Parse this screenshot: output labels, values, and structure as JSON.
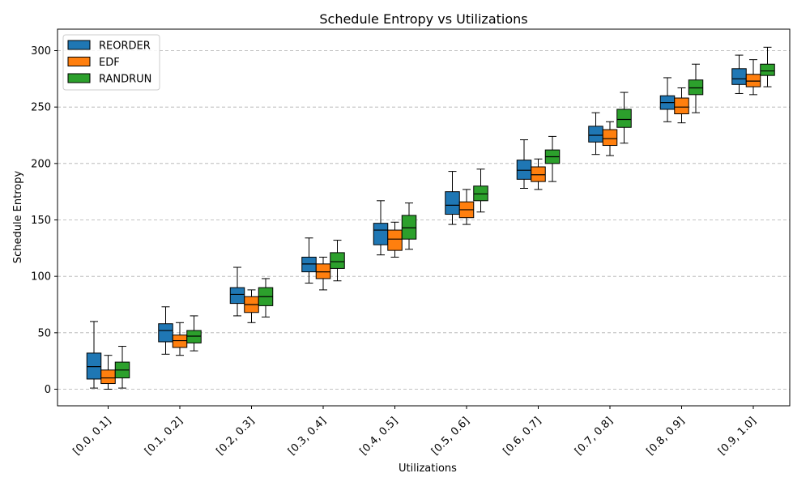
{
  "chart_data": {
    "type": "box",
    "title": "Schedule Entropy vs Utilizations",
    "xlabel": "Utilizations",
    "ylabel": "Schedule Entropy",
    "ylim": [
      -15,
      320
    ],
    "yticks": [
      0,
      50,
      100,
      150,
      200,
      250,
      300
    ],
    "grid": "y-dashed",
    "legend_position": "top-left",
    "categories": [
      "[0.0, 0.1]",
      "[0.1, 0.2]",
      "[0.2, 0.3]",
      "[0.3, 0.4]",
      "[0.4, 0.5]",
      "[0.5, 0.6]",
      "[0.6, 0.7]",
      "[0.7, 0.8]",
      "[0.8, 0.9]",
      "[0.9, 1.0]"
    ],
    "series": [
      {
        "name": "REORDER",
        "color": "#1f77b4",
        "boxes": [
          {
            "whislo": 1,
            "q1": 9,
            "med": 20,
            "q3": 32,
            "whishi": 60
          },
          {
            "whislo": 31,
            "q1": 42,
            "med": 52,
            "q3": 58,
            "whishi": 73
          },
          {
            "whislo": 65,
            "q1": 76,
            "med": 84,
            "q3": 90,
            "whishi": 108
          },
          {
            "whislo": 94,
            "q1": 104,
            "med": 111,
            "q3": 117,
            "whishi": 134
          },
          {
            "whislo": 119,
            "q1": 128,
            "med": 141,
            "q3": 147,
            "whishi": 167
          },
          {
            "whislo": 146,
            "q1": 155,
            "med": 163,
            "q3": 175,
            "whishi": 193
          },
          {
            "whislo": 178,
            "q1": 186,
            "med": 194,
            "q3": 203,
            "whishi": 221
          },
          {
            "whislo": 208,
            "q1": 219,
            "med": 225,
            "q3": 233,
            "whishi": 245
          },
          {
            "whislo": 237,
            "q1": 248,
            "med": 254,
            "q3": 260,
            "whishi": 276
          },
          {
            "whislo": 262,
            "q1": 270,
            "med": 275,
            "q3": 284,
            "whishi": 296
          }
        ]
      },
      {
        "name": "EDF",
        "color": "#ff7f0e",
        "boxes": [
          {
            "whislo": 0,
            "q1": 5,
            "med": 10,
            "q3": 17,
            "whishi": 30
          },
          {
            "whislo": 30,
            "q1": 37,
            "med": 43,
            "q3": 48,
            "whishi": 59
          },
          {
            "whislo": 59,
            "q1": 68,
            "med": 75,
            "q3": 82,
            "whishi": 88
          },
          {
            "whislo": 88,
            "q1": 98,
            "med": 104,
            "q3": 111,
            "whishi": 117
          },
          {
            "whislo": 117,
            "q1": 123,
            "med": 133,
            "q3": 141,
            "whishi": 148
          },
          {
            "whislo": 146,
            "q1": 152,
            "med": 159,
            "q3": 166,
            "whishi": 177
          },
          {
            "whislo": 177,
            "q1": 184,
            "med": 190,
            "q3": 197,
            "whishi": 204
          },
          {
            "whislo": 207,
            "q1": 216,
            "med": 222,
            "q3": 230,
            "whishi": 237
          },
          {
            "whislo": 236,
            "q1": 244,
            "med": 250,
            "q3": 258,
            "whishi": 267
          },
          {
            "whislo": 261,
            "q1": 268,
            "med": 273,
            "q3": 279,
            "whishi": 292
          }
        ]
      },
      {
        "name": "RANDRUN",
        "color": "#2ca02c",
        "boxes": [
          {
            "whislo": 1,
            "q1": 10,
            "med": 17,
            "q3": 24,
            "whishi": 38
          },
          {
            "whislo": 34,
            "q1": 41,
            "med": 47,
            "q3": 52,
            "whishi": 65
          },
          {
            "whislo": 64,
            "q1": 74,
            "med": 82,
            "q3": 90,
            "whishi": 98
          },
          {
            "whislo": 96,
            "q1": 107,
            "med": 113,
            "q3": 121,
            "whishi": 132
          },
          {
            "whislo": 124,
            "q1": 133,
            "med": 143,
            "q3": 154,
            "whishi": 165
          },
          {
            "whislo": 157,
            "q1": 167,
            "med": 173,
            "q3": 180,
            "whishi": 195
          },
          {
            "whislo": 184,
            "q1": 200,
            "med": 206,
            "q3": 212,
            "whishi": 224
          },
          {
            "whislo": 218,
            "q1": 232,
            "med": 239,
            "q3": 248,
            "whishi": 263
          },
          {
            "whislo": 245,
            "q1": 261,
            "med": 267,
            "q3": 274,
            "whishi": 288
          },
          {
            "whislo": 268,
            "q1": 278,
            "med": 282,
            "q3": 288,
            "whishi": 303
          }
        ]
      }
    ]
  }
}
